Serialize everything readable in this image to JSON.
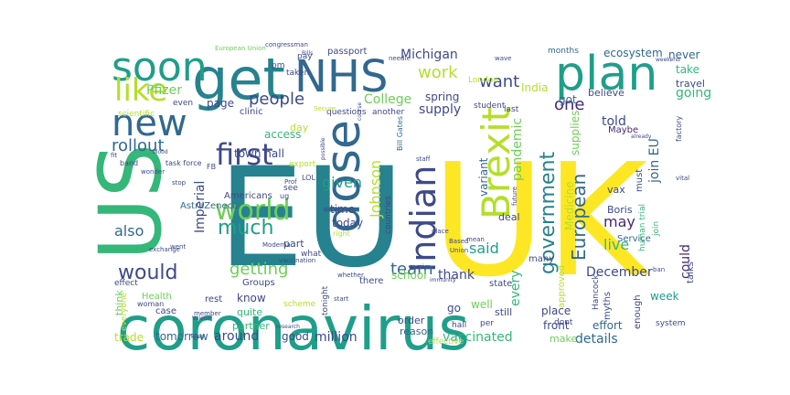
{
  "palette": {
    "c1": "#fde725",
    "c2": "#b5de2b",
    "c3": "#6ece58",
    "c4": "#35b779",
    "c5": "#1f9e89",
    "c6": "#26828e",
    "c7": "#31688e",
    "c8": "#3e4989",
    "c9": "#482878",
    "c10": "#440154"
  },
  "words": [
    {
      "text": "EU",
      "color": "#26828e"
    },
    {
      "text": "UK",
      "color": "#fde725"
    },
    {
      "text": "coronavirus",
      "color": "#1f9e89"
    },
    {
      "text": "US",
      "color": "#35b779"
    },
    {
      "text": "get",
      "color": "#26828e"
    },
    {
      "text": "plan",
      "color": "#1f9e89"
    },
    {
      "text": "soon",
      "color": "#1f9e89"
    },
    {
      "text": "NHS",
      "color": "#31688e"
    },
    {
      "text": "new",
      "color": "#31688e"
    },
    {
      "text": "like",
      "color": "#b5de2b"
    },
    {
      "text": "dose",
      "color": "#31688e"
    },
    {
      "text": "Brexit",
      "color": "#b5de2b"
    },
    {
      "text": "Indian",
      "color": "#3e4989"
    },
    {
      "text": "first",
      "color": "#3e4989"
    },
    {
      "text": "world",
      "color": "#6ece58"
    },
    {
      "text": "much",
      "color": "#1f9e89"
    },
    {
      "text": "would",
      "color": "#3e4989"
    },
    {
      "text": "government",
      "color": "#26828e"
    },
    {
      "text": "European",
      "color": "#31688e"
    },
    {
      "text": "people",
      "color": "#3e4989"
    },
    {
      "text": "work",
      "color": "#b5de2b"
    },
    {
      "text": "want",
      "color": "#3e4989"
    },
    {
      "text": "one",
      "color": "#482878"
    },
    {
      "text": "rollout",
      "color": "#31688e"
    },
    {
      "text": "getting",
      "color": "#6ece58"
    },
    {
      "text": "team",
      "color": "#31688e"
    },
    {
      "text": "said",
      "color": "#1f9e89"
    },
    {
      "text": "may",
      "color": "#482878"
    },
    {
      "text": "Johnson",
      "color": "#b5de2b"
    },
    {
      "text": "given",
      "color": "#1f9e89"
    },
    {
      "text": "also",
      "color": "#31688e"
    },
    {
      "text": "live",
      "color": "#35b779"
    },
    {
      "text": "December",
      "color": "#3e4989"
    },
    {
      "text": "thank",
      "color": "#3e4989"
    },
    {
      "text": "could",
      "color": "#482878"
    },
    {
      "text": "every",
      "color": "#35b779"
    },
    {
      "text": "vaccinated",
      "color": "#35b779"
    },
    {
      "text": "million",
      "color": "#3e4989"
    },
    {
      "text": "around",
      "color": "#3e4989"
    },
    {
      "text": "details",
      "color": "#31688e"
    },
    {
      "text": "tomorrow",
      "color": "#31688e"
    },
    {
      "text": "trade",
      "color": "#b5de2b"
    },
    {
      "text": "supply",
      "color": "#3e4989"
    },
    {
      "text": "College",
      "color": "#6ece58"
    },
    {
      "text": "Michigan",
      "color": "#3e4989"
    },
    {
      "text": "Pfizer",
      "color": "#6ece58"
    },
    {
      "text": "going",
      "color": "#35b779"
    },
    {
      "text": "told",
      "color": "#3e4989"
    },
    {
      "text": "pandemic",
      "color": "#6ece58"
    },
    {
      "text": "variant",
      "color": "#31688e"
    },
    {
      "text": "join EU",
      "color": "#31688e"
    },
    {
      "text": "Imperial",
      "color": "#3e4989"
    },
    {
      "text": "town hall",
      "color": "#3e4989"
    },
    {
      "text": "access",
      "color": "#35b779"
    },
    {
      "text": "never",
      "color": "#31688e"
    },
    {
      "text": "take",
      "color": "#35b779"
    },
    {
      "text": "travel",
      "color": "#3e4989"
    },
    {
      "text": "ecosystem",
      "color": "#31688e"
    },
    {
      "text": "months",
      "color": "#31688e"
    },
    {
      "text": "spring",
      "color": "#3e4989"
    },
    {
      "text": "India",
      "color": "#b5de2b"
    },
    {
      "text": "got",
      "color": "#31688e"
    },
    {
      "text": "believe",
      "color": "#3e4989"
    },
    {
      "text": "page",
      "color": "#3e4989"
    },
    {
      "text": "clinic",
      "color": "#3e4989"
    },
    {
      "text": "Medicine",
      "color": "#b5de2b"
    },
    {
      "text": "supplies",
      "color": "#6ece58"
    },
    {
      "text": "well",
      "color": "#6ece58"
    },
    {
      "text": "go",
      "color": "#3e4989"
    },
    {
      "text": "place",
      "color": "#3e4989"
    },
    {
      "text": "front",
      "color": "#3e4989"
    },
    {
      "text": "effort",
      "color": "#31688e"
    },
    {
      "text": "week",
      "color": "#1f9e89"
    },
    {
      "text": "reason",
      "color": "#31688e"
    },
    {
      "text": "school",
      "color": "#6ece58"
    },
    {
      "text": "time",
      "color": "#3e4989"
    },
    {
      "text": "today",
      "color": "#3e4989"
    },
    {
      "text": "part",
      "color": "#3e4989"
    },
    {
      "text": "know",
      "color": "#3e4989"
    },
    {
      "text": "quite",
      "color": "#35b779"
    },
    {
      "text": "good",
      "color": "#3e4989"
    },
    {
      "text": "partner",
      "color": "#35b779"
    },
    {
      "text": "think",
      "color": "#6ece58"
    },
    {
      "text": "Health",
      "color": "#6ece58"
    },
    {
      "text": "case",
      "color": "#3e4989"
    },
    {
      "text": "woman",
      "color": "#3e4989"
    },
    {
      "text": "effect",
      "color": "#3e4989"
    },
    {
      "text": "AstraZeneca",
      "color": "#31688e"
    },
    {
      "text": "Americans",
      "color": "#3e4989"
    },
    {
      "text": "passport",
      "color": "#3e4989"
    },
    {
      "text": "deal",
      "color": "#3e4989"
    },
    {
      "text": "Service",
      "color": "#31688e"
    },
    {
      "text": "approved",
      "color": "#b5de2b"
    },
    {
      "text": "vax",
      "color": "#3e4989"
    },
    {
      "text": "Boris",
      "color": "#3e4989"
    },
    {
      "text": "talks",
      "color": "#3e4989"
    },
    {
      "text": "Maybe",
      "color": "#482878"
    },
    {
      "text": "must",
      "color": "#3e4989"
    },
    {
      "text": "still",
      "color": "#3e4989"
    },
    {
      "text": "make",
      "color": "#6ece58"
    },
    {
      "text": "order",
      "color": "#3e4989"
    },
    {
      "text": "enough",
      "color": "#3e4989"
    },
    {
      "text": "myths",
      "color": "#3e4989"
    },
    {
      "text": "system",
      "color": "#3e4989"
    },
    {
      "text": "many",
      "color": "#3e4989"
    },
    {
      "text": "state",
      "color": "#3e4989"
    },
    {
      "text": "there",
      "color": "#3e4989"
    },
    {
      "text": "rest",
      "color": "#3e4989"
    },
    {
      "text": "Groups",
      "color": "#3e4989"
    },
    {
      "text": "scheme",
      "color": "#b5de2b"
    },
    {
      "text": "tonight",
      "color": "#3e4989"
    },
    {
      "text": "last",
      "color": "#3e4989"
    },
    {
      "text": "another",
      "color": "#3e4989"
    },
    {
      "text": "student",
      "color": "#3e4989"
    },
    {
      "text": "London",
      "color": "#b5de2b"
    },
    {
      "text": "questions",
      "color": "#3e4989"
    },
    {
      "text": "taken",
      "color": "#3e4989"
    },
    {
      "text": "pay",
      "color": "#3e4989"
    },
    {
      "text": "pm",
      "color": "#3e4989"
    },
    {
      "text": "even",
      "color": "#3e4989"
    },
    {
      "text": "scientific",
      "color": "#b5de2b"
    },
    {
      "text": "band",
      "color": "#3e4989"
    },
    {
      "text": "task force",
      "color": "#3e4989"
    },
    {
      "text": "European Union",
      "color": "#6ece58"
    },
    {
      "text": "congressman",
      "color": "#3e4989"
    },
    {
      "text": "export",
      "color": "#b5de2b"
    },
    {
      "text": "Bill Gates",
      "color": "#31688e"
    },
    {
      "text": "countries",
      "color": "#3e4989"
    },
    {
      "text": "FB",
      "color": "#3e4989"
    },
    {
      "text": "LOL",
      "color": "#3e4989"
    },
    {
      "text": "human trial",
      "color": "#35b779"
    },
    {
      "text": "factory",
      "color": "#3e4989"
    },
    {
      "text": "join",
      "color": "#35b779"
    },
    {
      "text": "Hancock",
      "color": "#3e4989"
    },
    {
      "text": "dont",
      "color": "#3e4989"
    },
    {
      "text": "per",
      "color": "#3e4989"
    },
    {
      "text": "hall",
      "color": "#3e4989"
    },
    {
      "text": "effective",
      "color": "#b5de2b"
    },
    {
      "text": "everyone",
      "color": "#b5de2b"
    },
    {
      "text": "see",
      "color": "#3e4989"
    },
    {
      "text": "ug",
      "color": "#3e4989"
    },
    {
      "text": "what",
      "color": "#3e4989"
    },
    {
      "text": "day",
      "color": "#b5de2b"
    },
    {
      "text": "right",
      "color": "#b5de2b"
    },
    {
      "text": "Prof",
      "color": "#3e4989"
    },
    {
      "text": "Moderna",
      "color": "#3e4989"
    },
    {
      "text": "vaccination",
      "color": "#3e4989"
    },
    {
      "text": "whether",
      "color": "#3e4989"
    },
    {
      "text": "start",
      "color": "#3e4989"
    },
    {
      "text": "member",
      "color": "#3e4989"
    },
    {
      "text": "exchange",
      "color": "#3e4989"
    },
    {
      "text": "went",
      "color": "#3e4989"
    },
    {
      "text": "staff",
      "color": "#3e4989"
    },
    {
      "text": "stop",
      "color": "#3e4989"
    },
    {
      "text": "wonder",
      "color": "#3e4989"
    },
    {
      "text": "already",
      "color": "#3e4989"
    },
    {
      "text": "weekend",
      "color": "#3e4989"
    },
    {
      "text": "future",
      "color": "#3e4989"
    },
    {
      "text": "mean",
      "color": "#3e4989"
    },
    {
      "text": "wave",
      "color": "#3e4989"
    },
    {
      "text": "needle",
      "color": "#3e4989"
    },
    {
      "text": "comic",
      "color": "#3e4989"
    },
    {
      "text": "Based",
      "color": "#3e4989"
    },
    {
      "text": "Union",
      "color": "#3e4989"
    },
    {
      "text": "immunity",
      "color": "#3e4989"
    },
    {
      "text": "research",
      "color": "#3e4989"
    },
    {
      "text": "keep",
      "color": "#3e4989"
    },
    {
      "text": "ban",
      "color": "#3e4989"
    },
    {
      "text": "vital",
      "color": "#3e4989"
    },
    {
      "text": "Secure",
      "color": "#b5de2b"
    },
    {
      "text": "fit",
      "color": "#3e4989"
    },
    {
      "text": "blood",
      "color": "#3e4989"
    },
    {
      "text": "Bills",
      "color": "#3e4989"
    },
    {
      "text": "possible",
      "color": "#3e4989"
    },
    {
      "text": "course",
      "color": "#3e4989"
    },
    {
      "text": "ValeGH",
      "color": "#3e4989"
    },
    {
      "text": "place",
      "color": "#3e4989"
    }
  ]
}
